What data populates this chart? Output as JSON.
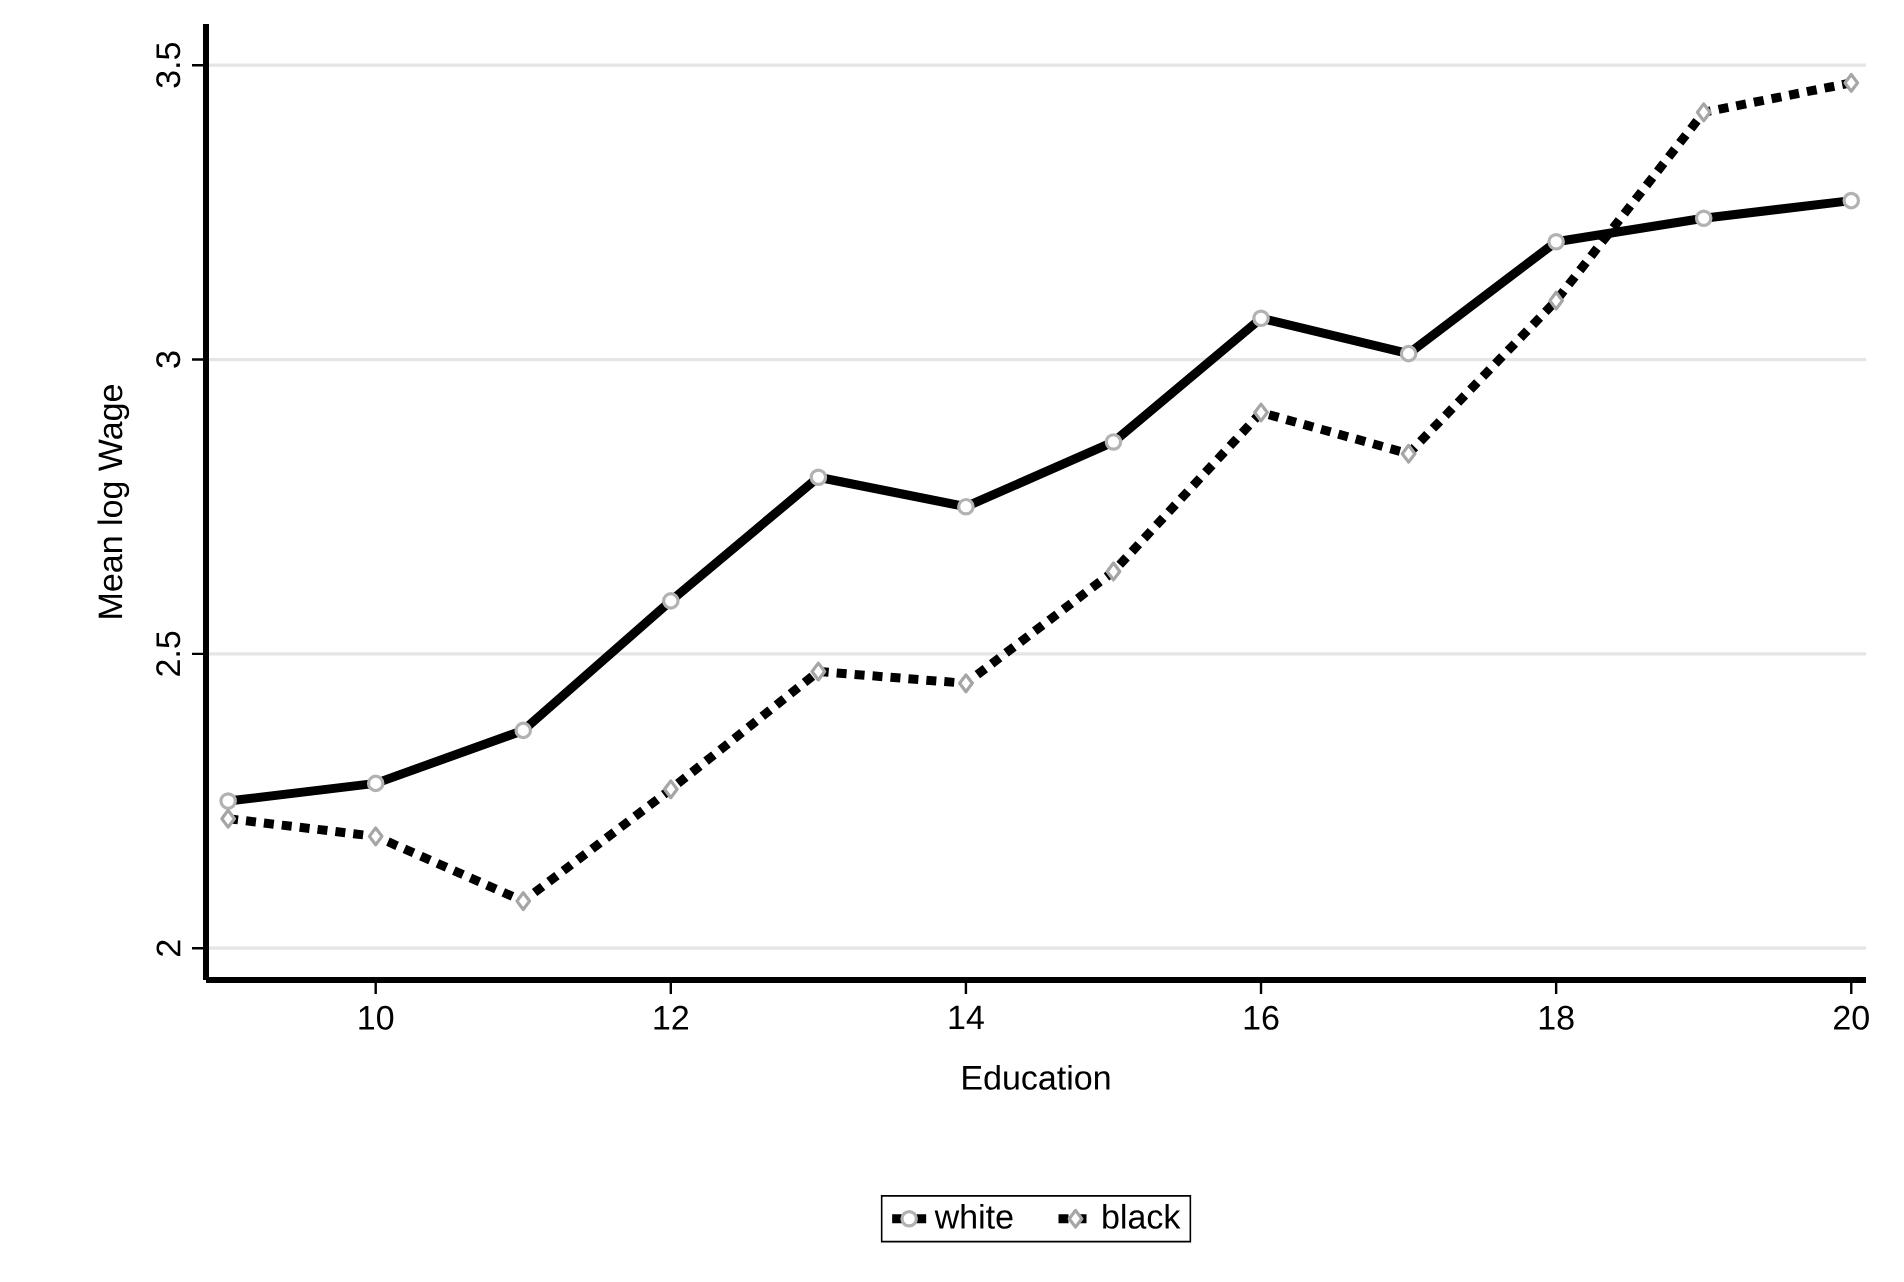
{
  "chart_data": {
    "type": "line",
    "xlabel": "Education",
    "ylabel": "Mean log Wage",
    "x": [
      9,
      10,
      11,
      12,
      13,
      14,
      15,
      16,
      17,
      18,
      19,
      20
    ],
    "series": [
      {
        "name": "white",
        "color": "#000000",
        "marker": "circle",
        "line_style": "solid",
        "values": [
          2.25,
          2.28,
          2.37,
          2.59,
          2.8,
          2.75,
          2.86,
          3.07,
          3.01,
          3.2,
          3.24,
          3.27
        ]
      },
      {
        "name": "black",
        "color": "#000000",
        "marker": "diamond",
        "line_style": "dotted",
        "values": [
          2.22,
          2.19,
          2.08,
          2.27,
          2.47,
          2.45,
          2.64,
          2.91,
          2.84,
          3.1,
          3.42,
          3.47
        ]
      }
    ],
    "xlim": [
      8.85,
      20.1
    ],
    "ylim": [
      1.946,
      3.57
    ],
    "xticks": [
      10,
      12,
      14,
      16,
      18,
      20
    ],
    "yticks": [
      2,
      2.5,
      3,
      3.5
    ],
    "grid": "y",
    "legend": "bottom"
  }
}
